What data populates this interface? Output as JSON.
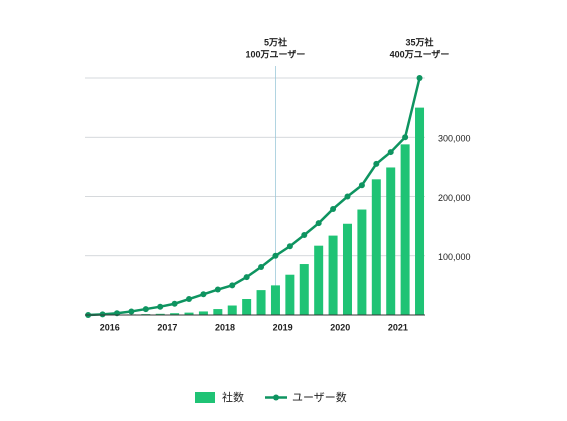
{
  "chart_data": {
    "type": "bar-line",
    "annotations": [
      {
        "x": 2018.875,
        "lines": [
          "5万社",
          "100万ユーザー"
        ]
      },
      {
        "x": 2021.375,
        "lines": [
          "35万社",
          "400万ユーザー"
        ]
      }
    ],
    "x": [
      2015.625,
      2015.875,
      2016.125,
      2016.375,
      2016.625,
      2016.875,
      2017.125,
      2017.375,
      2017.625,
      2017.875,
      2018.125,
      2018.375,
      2018.625,
      2018.875,
      2019.125,
      2019.375,
      2019.625,
      2019.875,
      2020.125,
      2020.375,
      2020.625,
      2020.875,
      2021.125,
      2021.375
    ],
    "series": [
      {
        "name": "社数",
        "color": "#1fc375",
        "kind": "bar",
        "values": [
          0,
          0,
          500,
          1000,
          1500,
          2000,
          3000,
          4000,
          6000,
          10000,
          16000,
          27000,
          42000,
          50000,
          68000,
          86000,
          117000,
          134000,
          154000,
          178000,
          229000,
          249000,
          288000,
          350000
        ]
      },
      {
        "name": "ユーザー数",
        "color": "#0e9460",
        "kind": "line",
        "axis": "y2",
        "values": [
          0,
          10000,
          30000,
          60000,
          100000,
          140000,
          190000,
          270000,
          350000,
          430000,
          500000,
          640000,
          810000,
          1000000,
          1160000,
          1350000,
          1550000,
          1790000,
          2000000,
          2190000,
          2550000,
          2750000,
          3000000,
          4000000
        ]
      }
    ],
    "xlim": [
      2015.57,
      2021.47
    ],
    "xticks": [
      2016,
      2017,
      2018,
      2019,
      2020,
      2021
    ],
    "ylim": [
      0,
      400000
    ],
    "yticks": [
      {
        "value": 100000,
        "label": "100,000"
      },
      {
        "value": 200000,
        "label": "200,000"
      },
      {
        "value": 300000,
        "label": "300,000"
      }
    ],
    "y2lim": [
      0,
      4000000
    ],
    "grid": true
  }
}
